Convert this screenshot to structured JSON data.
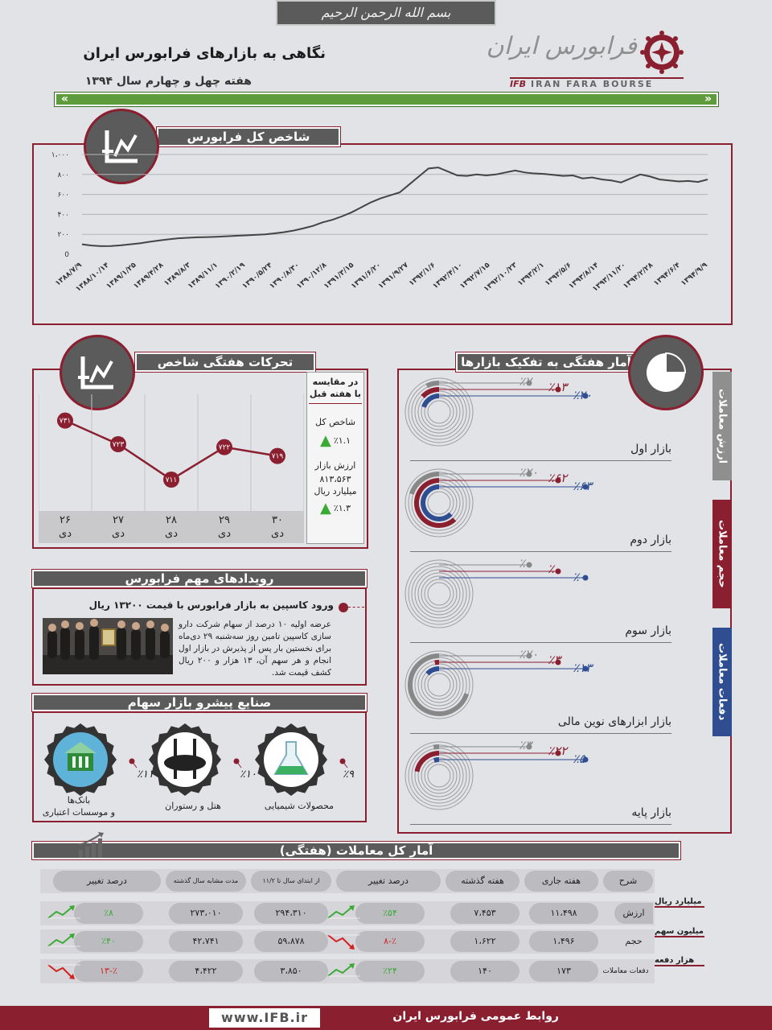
{
  "header": {
    "bismillah": "بسم الله الرحمن الرحیم",
    "title": "نگاهی به بازارهای فرابورس ایران",
    "subtitle": "هفته چهل و چهارم سال ۱۳۹۴",
    "logo_fa": "فرابورس ایران",
    "logo_en_prefix": "IFB",
    "logo_en": "IRAN FARA BOURSE"
  },
  "index_section": {
    "title": "شاخص کل فرابورس"
  },
  "chart_data": [
    {
      "type": "line",
      "title": "شاخص کل فرابورس",
      "yticks": [
        "0",
        "۲۰۰",
        "۴۰۰",
        "۶۰۰",
        "۸۰۰",
        "۱،۰۰۰"
      ],
      "ylim": [
        0,
        1000
      ],
      "xticks": [
        "۱۳۸۸/۷/۹",
        "۱۳۸۸/۱۰/۱۴",
        "۱۳۸۹/۱/۲۵",
        "۱۳۸۹/۴/۲۸",
        "۱۳۸۹/۸/۳",
        "۱۳۸۹/۱۱/۱",
        "۱۳۹۰/۲/۱۹",
        "۱۳۹۰/۵/۲۴",
        "۱۳۹۰/۸/۳۰",
        "۱۳۹۰/۱۲/۸",
        "۱۳۹۱/۳/۱۵",
        "۱۳۹۱/۶/۲۰",
        "۱۳۹۱/۹/۲۷",
        "۱۳۹۲/۱/۶",
        "۱۳۹۲/۴/۱۰",
        "۱۳۹۲/۷/۱۵",
        "۱۳۹۲/۱۰/۲۳",
        "۱۳۹۳/۲/۱",
        "۱۳۹۳/۵/۶",
        "۱۳۹۳/۸/۱۴",
        "۱۳۹۳/۱۱/۲۰",
        "۱۳۹۴/۲/۲۸",
        "۱۳۹۴/۶/۴",
        "۱۳۹۴/۹/۹"
      ],
      "y": [
        100,
        88,
        82,
        83,
        90,
        100,
        110,
        125,
        138,
        150,
        160,
        165,
        170,
        172,
        175,
        180,
        185,
        190,
        195,
        200,
        210,
        222,
        238,
        260,
        285,
        320,
        345,
        380,
        420,
        470,
        520,
        560,
        590,
        620,
        700,
        780,
        860,
        870,
        830,
        790,
        785,
        800,
        790,
        800,
        820,
        840,
        820,
        810,
        805,
        795,
        785,
        790,
        760,
        770,
        750,
        740,
        720,
        760,
        800,
        780,
        750,
        740,
        730,
        735,
        725,
        750
      ]
    },
    {
      "type": "line",
      "title": "تحرکات هفتگی شاخص",
      "categories": [
        "۲۶ دی",
        "۲۷ دی",
        "۲۸ دی",
        "۲۹ دی",
        "۳۰ دی"
      ],
      "values": [
        731,
        723,
        711,
        722,
        719
      ],
      "labels": [
        "۷۳۱",
        "۷۲۳",
        "۷۱۱",
        "۷۲۲",
        "۷۱۹"
      ],
      "color": "#8a1f30"
    },
    {
      "type": "bar",
      "title": "آمار هفتگی به تفکیک بازارها",
      "categories": [
        "بازار اول",
        "بازار دوم",
        "بازار سوم",
        "بازار ابزارهای نوین مالی",
        "بازار پایه"
      ],
      "series": [
        {
          "name": "ارزش معاملات",
          "values": [
            20,
            63,
            0,
            13,
            5
          ],
          "color": "#2f4d91"
        },
        {
          "name": "حجم معاملات",
          "values": [
            13,
            62,
            0,
            3,
            22
          ],
          "color": "#8a1f30"
        },
        {
          "name": "دفعات معاملات",
          "values": [
            7,
            20,
            0,
            70,
            3
          ],
          "color": "#888888"
        }
      ]
    },
    {
      "type": "pie",
      "title": "صنایع پیشرو بازار سهام",
      "categories": [
        "بانک‌ها و موسسات اعتباری",
        "هتل و رستوران",
        "محصولات شیمیایی"
      ],
      "values": [
        11,
        10,
        9
      ]
    }
  ],
  "weekly": {
    "title": "تحرکات هفتگی شاخص",
    "days": [
      {
        "d": "۲۶",
        "m": "دی"
      },
      {
        "d": "۲۷",
        "m": "دی"
      },
      {
        "d": "۲۸",
        "m": "دی"
      },
      {
        "d": "۲۹",
        "m": "دی"
      },
      {
        "d": "۳۰",
        "m": "دی"
      }
    ],
    "compare_title": "در مقایسه با هفته قبل",
    "index_label": "شاخص کل",
    "index_change": "٪۱.۱",
    "value_label": "ارزش بازار",
    "value_amount": "۸۱۳،۵۶۳",
    "value_unit": "میلیارد ریال",
    "value_change": "٪۱.۳"
  },
  "markets": {
    "title": "آمار هفتگی به تفکیک بازارها",
    "tabs": [
      "ارزش معاملات",
      "حجم معاملات",
      "دفعات معاملات"
    ],
    "rows": [
      {
        "name": "بازار اول",
        "blue": "٪۲۰",
        "red": "٪۱۳",
        "gray": "٪۷"
      },
      {
        "name": "بازار دوم",
        "blue": "٪۶۳",
        "red": "٪۶۲",
        "gray": "٪۲۰"
      },
      {
        "name": "بازار سوم",
        "blue": "٪۰",
        "red": "٪۰",
        "gray": "٪۰"
      },
      {
        "name": "بازار ابزارهای نوین مالی",
        "blue": "٪۱۳",
        "red": "٪۳",
        "gray": "٪۷۰"
      },
      {
        "name": "بازار پایه",
        "blue": "٪۵",
        "red": "٪۲۲",
        "gray": "٪۳"
      }
    ]
  },
  "events": {
    "title": "رویدادهای مهم فرابورس",
    "headline": "ورود کاسپین به بازار فرابورس با قیمت ۱۳۲۰۰ ریال",
    "body": "عرضه اولیه ۱۰ درصد از سهام شرکت دارو سازی کاسپین تامین روز سه‌شنبه ۲۹ دی‌ماه برای نخستین بار پس از پذیرش در بازار اول انجام و هر سهم آن، ۱۳ هزار و ۲۰۰ ریال کشف قیمت شد."
  },
  "industries": {
    "title": "صنایع پیشرو بازار سهام",
    "items": [
      {
        "name1": "بانک‌ها",
        "name2": "و موسسات اعتباری",
        "pct": "٪۱۱",
        "icon": "bank-icon"
      },
      {
        "name1": "هتل و رستوران",
        "name2": "",
        "pct": "٪۱۰",
        "icon": "restaurant-icon"
      },
      {
        "name1": "محصولات شیمیایی",
        "name2": "",
        "pct": "٪۹",
        "icon": "chemistry-icon"
      }
    ]
  },
  "stats": {
    "title": "آمار کل معاملات (هفتگی)",
    "headers": [
      "شرح",
      "هفته جاری",
      "هفته گذشته",
      "درصد تغییر",
      "از ابتدای سال تا ۱۱/۲",
      "مدت مشابه سال گذشته",
      "درصد تغییر"
    ],
    "rows": [
      {
        "label": "ارزش",
        "unit": "میلیارد ریال",
        "cur": "۱۱،۴۹۸",
        "prev": "۷،۴۵۳",
        "chg": "٪۵۴",
        "ytd": "۲۹۴،۳۱۰",
        "ly": "۲۷۳،۰۱۰",
        "chg2": "٪۸",
        "up1": true,
        "up2": true
      },
      {
        "label": "حجم",
        "unit": "میلیون سهم",
        "cur": "۱،۴۹۶",
        "prev": "۱،۶۲۲",
        "chg": "٪-۸",
        "ytd": "۵۹،۸۷۸",
        "ly": "۴۲،۷۴۱",
        "chg2": "٪۴۰",
        "up1": false,
        "up2": true
      },
      {
        "label": "دفعات معاملات",
        "unit": "هزار دفعه",
        "cur": "۱۷۳",
        "prev": "۱۴۰",
        "chg": "٪۲۴",
        "ytd": "۳،۸۵۰",
        "ly": "۴،۴۲۲",
        "chg2": "٪-۱۳",
        "up1": true,
        "up2": false
      }
    ]
  },
  "footer": {
    "website": "www.IFB.ir",
    "pr": "روابط عمومی فرابورس ایران"
  },
  "colors": {
    "maroon": "#8a1f30",
    "blue": "#2f4d91",
    "gray": "#888888",
    "green": "#3aaa35",
    "red": "#d32020",
    "band": "#5e9b3c"
  }
}
